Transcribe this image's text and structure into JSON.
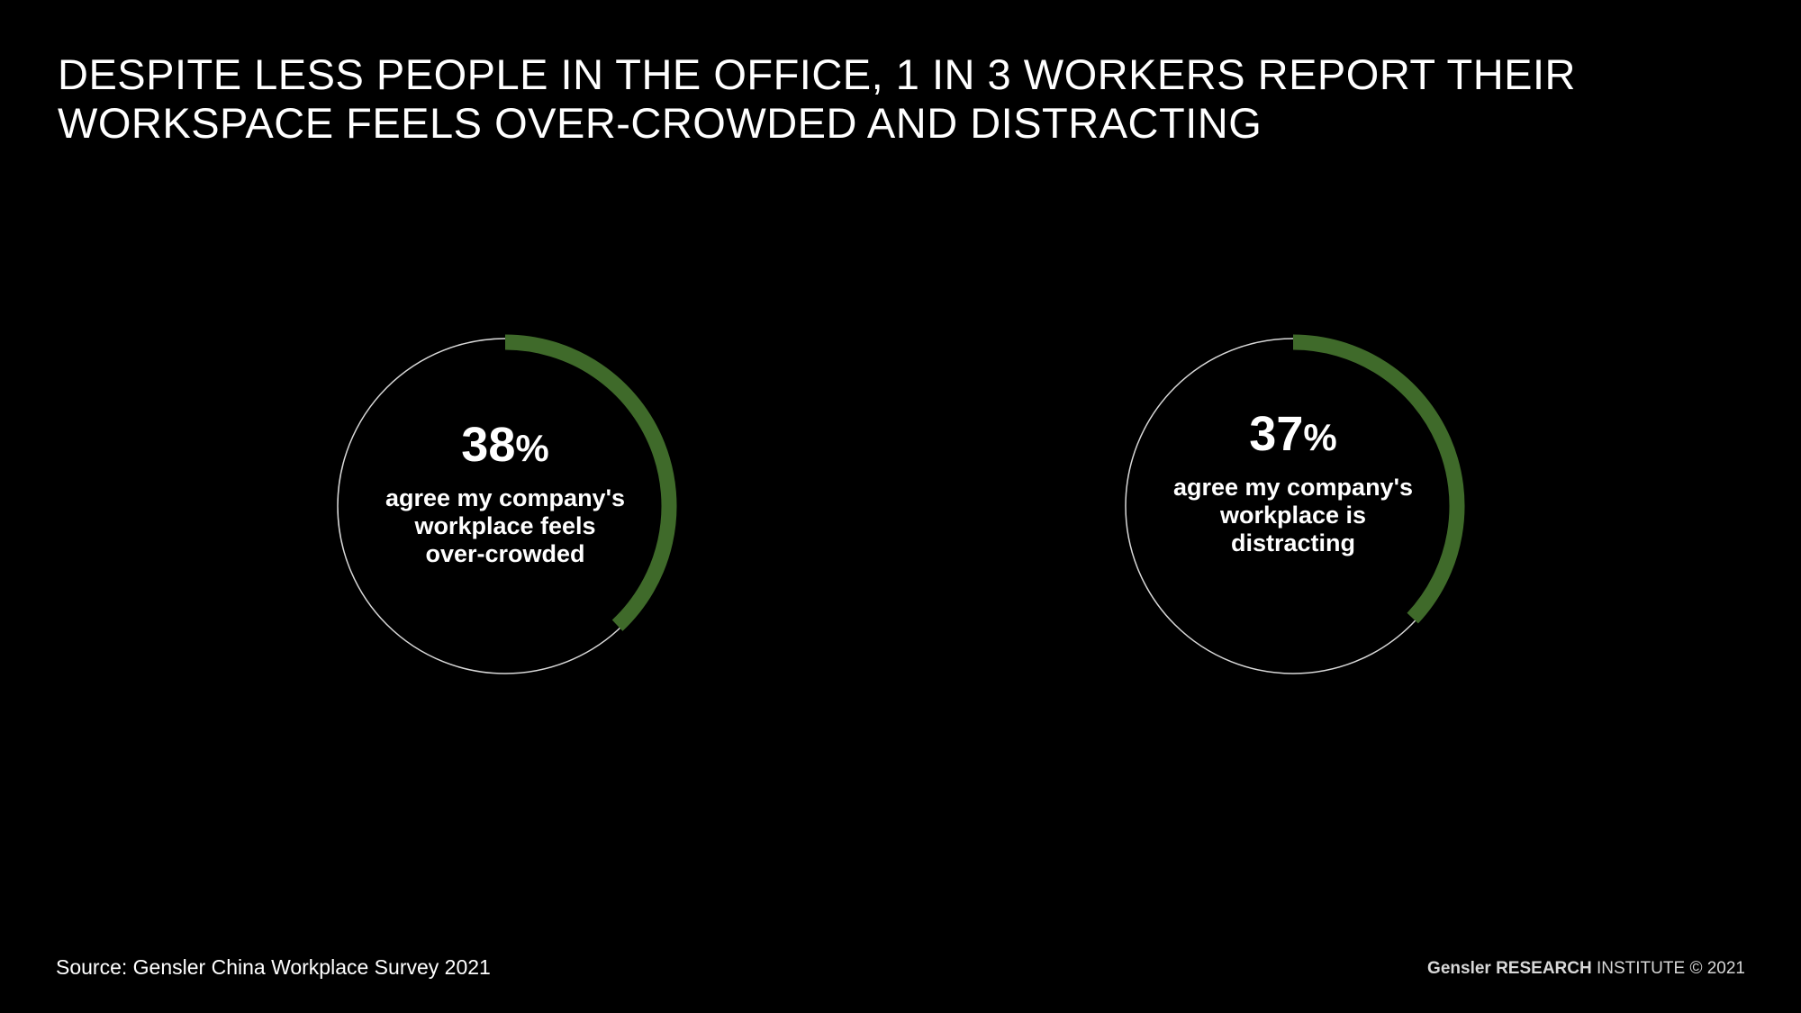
{
  "title": {
    "line1": "DESPITE LESS PEOPLE IN THE OFFICE, 1 IN 3 WORKERS REPORT THEIR",
    "line2": "WORKSPACE FEELS OVER-CROWDED AND DISTRACTING"
  },
  "colors": {
    "background": "#000000",
    "accent": "#3f6a2a",
    "ring": "#d9d9d9",
    "text": "#ffffff"
  },
  "chart_data": [
    {
      "type": "pie",
      "value": 38,
      "max": 100,
      "value_text": "38",
      "unit": "%",
      "label_lines": [
        "agree my company's",
        "workplace feels",
        "over-crowded"
      ]
    },
    {
      "type": "pie",
      "value": 37,
      "max": 100,
      "value_text": "37",
      "unit": "%",
      "label_lines": [
        "agree my company's",
        "workplace is",
        "distracting"
      ]
    }
  ],
  "footer": {
    "source": "Source: Gensler China Workplace Survey 2021",
    "credit_brand": "Gensler RESEARCH",
    "credit_rest": " INSTITUTE © 2021"
  }
}
